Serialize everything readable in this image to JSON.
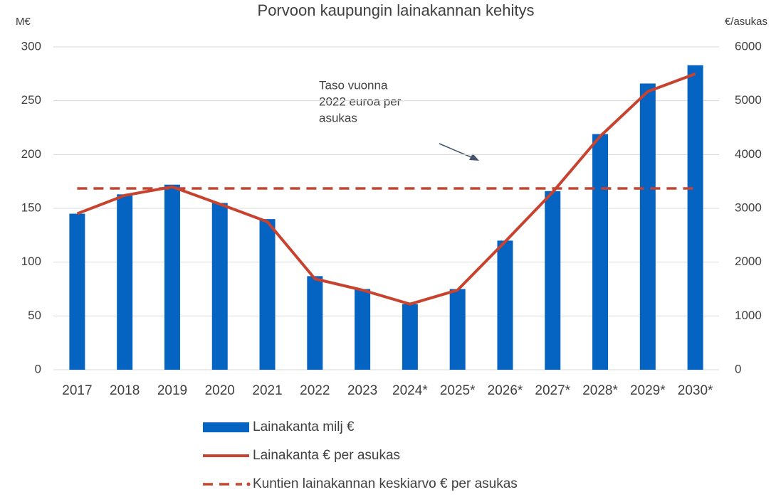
{
  "chart_data": {
    "type": "bar_line",
    "title": "Porvoon kaupungin lainakannan kehitys",
    "y_axis_label": "M€",
    "y2_axis_label": "€/asukas",
    "categories": [
      "2017",
      "2018",
      "2019",
      "2020",
      "2021",
      "2022",
      "2023",
      "2024*",
      "2025*",
      "2026*",
      "2027*",
      "2028*",
      "2029*",
      "2030*"
    ],
    "series": [
      {
        "name": "Lainakanta milj €",
        "type": "bar",
        "color": "#0563c1",
        "axis": "y",
        "values": [
          145,
          163,
          172,
          155,
          140,
          87,
          75,
          61,
          75,
          120,
          166,
          219,
          266,
          283
        ]
      },
      {
        "name": "Lainakanta € per asukas",
        "type": "line",
        "color": "#c8432f",
        "axis": "y2",
        "values": [
          2900,
          3240,
          3400,
          3080,
          2750,
          1690,
          1480,
          1220,
          1480,
          2380,
          3300,
          4340,
          5170,
          5500
        ]
      },
      {
        "name": "Kuntien lainakannan keskiarvo € per asukas",
        "type": "hline",
        "color": "#c8432f",
        "axis": "y2",
        "dashed": true,
        "value": 3370
      }
    ],
    "annotation": {
      "lines": [
        "Taso vuonna",
        "2022 euroa per",
        "asukas"
      ]
    },
    "ylim": [
      0,
      300
    ],
    "yticks": [
      0,
      50,
      100,
      150,
      200,
      250,
      300
    ],
    "y2lim": [
      0,
      6000
    ],
    "y2ticks": [
      0,
      1000,
      2000,
      3000,
      4000,
      5000,
      6000
    ],
    "grid": true,
    "legend": "bottom"
  }
}
